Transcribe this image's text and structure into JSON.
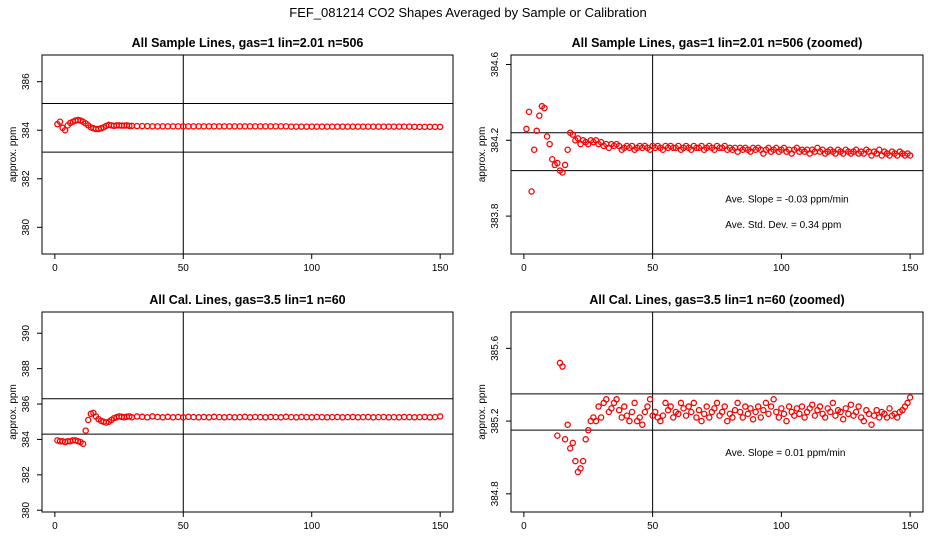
{
  "page": {
    "title": "FEF_081214  CO2 Shapes Averaged by Sample or Calibration"
  },
  "chart_data": [
    {
      "type": "scatter",
      "title": "All Sample Lines, gas=1 lin=2.01 n=506",
      "xlabel": "",
      "ylabel": "approx. ppm",
      "xlim": [
        -5,
        155
      ],
      "ylim": [
        378.9,
        387.1
      ],
      "xticks": [
        0,
        50,
        100,
        150
      ],
      "yticks": [
        380,
        382,
        384,
        386
      ],
      "hlines": [
        385.1,
        383.1
      ],
      "vlines": [
        50
      ],
      "annotations": [],
      "series": [
        {
          "color": "#ff0000",
          "x": [
            1,
            2,
            3,
            4,
            5,
            6,
            7,
            8,
            9,
            10,
            11,
            12,
            13,
            14,
            15,
            16,
            17,
            18,
            19,
            20,
            21,
            22,
            23,
            24,
            25,
            26,
            27,
            28,
            29,
            30,
            32,
            34,
            36,
            38,
            40,
            42,
            44,
            46,
            48,
            50,
            52,
            54,
            56,
            58,
            60,
            62,
            64,
            66,
            68,
            70,
            72,
            74,
            76,
            78,
            80,
            82,
            84,
            86,
            88,
            90,
            92,
            94,
            96,
            98,
            100,
            102,
            104,
            106,
            108,
            110,
            112,
            114,
            116,
            118,
            120,
            122,
            124,
            126,
            128,
            130,
            132,
            134,
            136,
            138,
            140,
            142,
            144,
            146,
            148,
            150
          ],
          "y": [
            384.25,
            384.35,
            384.1,
            384.0,
            384.2,
            384.3,
            384.35,
            384.4,
            384.42,
            384.4,
            384.35,
            384.28,
            384.2,
            384.12,
            384.08,
            384.05,
            384.05,
            384.08,
            384.12,
            384.18,
            384.22,
            384.2,
            384.18,
            384.2,
            384.2,
            384.19,
            384.19,
            384.2,
            384.18,
            384.18,
            384.17,
            384.17,
            384.17,
            384.16,
            384.16,
            384.16,
            384.16,
            384.16,
            384.16,
            384.16,
            384.16,
            384.16,
            384.16,
            384.16,
            384.16,
            384.16,
            384.16,
            384.16,
            384.16,
            384.16,
            384.16,
            384.16,
            384.16,
            384.16,
            384.16,
            384.16,
            384.16,
            384.16,
            384.16,
            384.16,
            384.15,
            384.15,
            384.15,
            384.15,
            384.15,
            384.15,
            384.15,
            384.15,
            384.15,
            384.15,
            384.15,
            384.15,
            384.15,
            384.15,
            384.15,
            384.15,
            384.15,
            384.15,
            384.15,
            384.15,
            384.15,
            384.15,
            384.15,
            384.15,
            384.14,
            384.14,
            384.14,
            384.14,
            384.14,
            384.14
          ]
        }
      ]
    },
    {
      "type": "scatter",
      "title": "All Sample Lines, gas=1 lin=2.01 n=506 (zoomed)",
      "xlabel": "",
      "ylabel": "approx. ppm",
      "xlim": [
        -5,
        155
      ],
      "ylim": [
        383.6,
        384.65
      ],
      "xticks": [
        0,
        50,
        100,
        150
      ],
      "yticks": [
        383.8,
        384.2,
        384.6
      ],
      "hlines": [
        384.24,
        384.04
      ],
      "vlines": [
        50
      ],
      "annotations": [
        "Ave. Slope =  -0.03  ppm/min",
        "Ave. Std. Dev. =  0.34  ppm"
      ],
      "series": [
        {
          "color": "#ff0000",
          "x": [
            1,
            2,
            3,
            4,
            5,
            6,
            7,
            8,
            9,
            10,
            11,
            12,
            13,
            14,
            15,
            16,
            17,
            18,
            19,
            20,
            21,
            22,
            23,
            24,
            25,
            26,
            27,
            28,
            29,
            30,
            31,
            32,
            33,
            34,
            35,
            36,
            37,
            38,
            39,
            40,
            41,
            42,
            43,
            44,
            45,
            46,
            47,
            48,
            49,
            50,
            51,
            52,
            53,
            54,
            55,
            56,
            57,
            58,
            59,
            60,
            61,
            62,
            63,
            64,
            65,
            66,
            67,
            68,
            69,
            70,
            71,
            72,
            73,
            74,
            75,
            76,
            77,
            78,
            79,
            80,
            81,
            82,
            83,
            84,
            85,
            86,
            87,
            88,
            89,
            90,
            91,
            92,
            93,
            94,
            95,
            96,
            97,
            98,
            99,
            100,
            101,
            102,
            103,
            104,
            105,
            106,
            107,
            108,
            109,
            110,
            111,
            112,
            113,
            114,
            115,
            116,
            117,
            118,
            119,
            120,
            121,
            122,
            123,
            124,
            125,
            126,
            127,
            128,
            129,
            130,
            131,
            132,
            133,
            134,
            135,
            136,
            137,
            138,
            139,
            140,
            141,
            142,
            143,
            144,
            145,
            146,
            147,
            148,
            149,
            150
          ],
          "y": [
            384.26,
            384.35,
            383.93,
            384.15,
            384.25,
            384.33,
            384.38,
            384.37,
            384.22,
            384.18,
            384.1,
            384.07,
            384.08,
            384.04,
            384.03,
            384.07,
            384.15,
            384.24,
            384.23,
            384.2,
            384.21,
            384.18,
            384.2,
            384.19,
            384.18,
            384.2,
            384.19,
            384.2,
            384.18,
            384.19,
            384.17,
            384.18,
            384.16,
            384.18,
            384.17,
            384.18,
            384.17,
            384.15,
            384.16,
            384.17,
            384.16,
            384.17,
            384.15,
            384.16,
            384.17,
            384.16,
            384.17,
            384.16,
            384.15,
            384.17,
            384.16,
            384.17,
            384.16,
            384.15,
            384.17,
            384.16,
            384.17,
            384.16,
            384.16,
            384.17,
            384.15,
            384.16,
            384.17,
            384.16,
            384.15,
            384.17,
            384.16,
            384.16,
            384.17,
            384.15,
            384.16,
            384.17,
            384.16,
            384.15,
            384.17,
            384.16,
            384.16,
            384.17,
            384.15,
            384.16,
            384.15,
            384.16,
            384.14,
            384.16,
            384.15,
            384.16,
            384.15,
            384.14,
            384.16,
            384.15,
            384.16,
            384.15,
            384.13,
            384.15,
            384.16,
            384.14,
            384.15,
            384.16,
            384.14,
            384.15,
            384.16,
            384.14,
            384.15,
            384.13,
            384.15,
            384.16,
            384.14,
            384.15,
            384.14,
            384.15,
            384.13,
            384.15,
            384.14,
            384.16,
            384.14,
            384.15,
            384.13,
            384.14,
            384.15,
            384.14,
            384.13,
            384.15,
            384.14,
            384.13,
            384.15,
            384.14,
            384.13,
            384.14,
            384.15,
            384.13,
            384.14,
            384.13,
            384.15,
            384.14,
            384.12,
            384.14,
            384.13,
            384.15,
            384.12,
            384.14,
            384.13,
            384.12,
            384.14,
            384.13,
            384.12,
            384.14,
            384.13,
            384.12,
            384.13,
            384.12
          ]
        }
      ]
    },
    {
      "type": "scatter",
      "title": "All Cal. Lines, gas=3.5 lin=1 n=60",
      "xlabel": "",
      "ylabel": "approx. ppm",
      "xlim": [
        -5,
        155
      ],
      "ylim": [
        379.9,
        391.2
      ],
      "xticks": [
        0,
        50,
        100,
        150
      ],
      "yticks": [
        380,
        382,
        384,
        386,
        388,
        390
      ],
      "hlines": [
        386.3,
        384.3
      ],
      "vlines": [
        50
      ],
      "annotations": [],
      "series": [
        {
          "color": "#ff0000",
          "x": [
            1,
            2,
            3,
            4,
            5,
            6,
            7,
            8,
            9,
            10,
            11,
            12,
            13,
            14,
            15,
            16,
            17,
            18,
            19,
            20,
            21,
            22,
            23,
            24,
            25,
            26,
            27,
            28,
            29,
            30,
            32,
            34,
            36,
            38,
            40,
            42,
            44,
            46,
            48,
            50,
            52,
            54,
            56,
            58,
            60,
            62,
            64,
            66,
            68,
            70,
            72,
            74,
            76,
            78,
            80,
            82,
            84,
            86,
            88,
            90,
            92,
            94,
            96,
            98,
            100,
            102,
            104,
            106,
            108,
            110,
            112,
            114,
            116,
            118,
            120,
            122,
            124,
            126,
            128,
            130,
            132,
            134,
            136,
            138,
            140,
            142,
            144,
            146,
            148,
            150
          ],
          "y": [
            383.95,
            383.9,
            383.9,
            383.85,
            383.9,
            383.9,
            383.95,
            383.95,
            383.9,
            383.85,
            383.75,
            384.5,
            385.1,
            385.45,
            385.5,
            385.3,
            385.15,
            385.05,
            385.0,
            384.95,
            385.0,
            385.1,
            385.2,
            385.25,
            385.3,
            385.28,
            385.25,
            385.28,
            385.3,
            385.25,
            385.3,
            385.28,
            385.25,
            385.3,
            385.27,
            385.25,
            385.28,
            385.25,
            385.27,
            385.25,
            385.28,
            385.26,
            385.25,
            385.27,
            385.25,
            385.28,
            385.26,
            385.25,
            385.27,
            385.25,
            385.26,
            385.28,
            385.25,
            385.27,
            385.26,
            385.25,
            385.27,
            385.26,
            385.25,
            385.28,
            385.26,
            385.25,
            385.27,
            385.26,
            385.25,
            385.27,
            385.26,
            385.25,
            385.26,
            385.27,
            385.25,
            385.26,
            385.27,
            385.25,
            385.26,
            385.27,
            385.25,
            385.26,
            385.27,
            385.25,
            385.26,
            385.25,
            385.27,
            385.26,
            385.25,
            385.26,
            385.27,
            385.25,
            385.26,
            385.3
          ]
        }
      ]
    },
    {
      "type": "scatter",
      "title": "All Cal. Lines, gas=3.5 lin=1 n=60 (zoomed)",
      "xlabel": "",
      "ylabel": "approx. ppm",
      "xlim": [
        -5,
        155
      ],
      "ylim": [
        384.7,
        385.8
      ],
      "xticks": [
        0,
        50,
        100,
        150
      ],
      "yticks": [
        384.8,
        385.2,
        385.6
      ],
      "hlines": [
        385.35,
        385.15
      ],
      "vlines": [
        50
      ],
      "annotations": [
        "Ave. Slope =  0.01  ppm/min"
      ],
      "series": [
        {
          "color": "#ff0000",
          "x": [
            13,
            14,
            15,
            16,
            17,
            18,
            19,
            20,
            21,
            22,
            23,
            24,
            25,
            26,
            27,
            28,
            29,
            30,
            31,
            32,
            33,
            34,
            35,
            36,
            37,
            38,
            39,
            40,
            41,
            42,
            43,
            44,
            45,
            46,
            47,
            48,
            49,
            50,
            51,
            52,
            53,
            54,
            55,
            56,
            57,
            58,
            59,
            60,
            61,
            62,
            63,
            64,
            65,
            66,
            67,
            68,
            69,
            70,
            71,
            72,
            73,
            74,
            75,
            76,
            77,
            78,
            79,
            80,
            81,
            82,
            83,
            84,
            85,
            86,
            87,
            88,
            89,
            90,
            91,
            92,
            93,
            94,
            95,
            96,
            97,
            98,
            99,
            100,
            101,
            102,
            103,
            104,
            105,
            106,
            107,
            108,
            109,
            110,
            111,
            112,
            113,
            114,
            115,
            116,
            117,
            118,
            119,
            120,
            121,
            122,
            123,
            124,
            125,
            126,
            127,
            128,
            129,
            130,
            131,
            132,
            133,
            134,
            135,
            136,
            137,
            138,
            139,
            140,
            141,
            142,
            143,
            144,
            145,
            146,
            147,
            148,
            149,
            150
          ],
          "y": [
            385.12,
            385.52,
            385.5,
            385.1,
            385.18,
            385.05,
            385.08,
            384.98,
            384.92,
            384.94,
            384.98,
            385.1,
            385.15,
            385.2,
            385.22,
            385.2,
            385.28,
            385.22,
            385.3,
            385.32,
            385.25,
            385.27,
            385.3,
            385.32,
            385.26,
            385.22,
            385.28,
            385.23,
            385.2,
            385.25,
            385.3,
            385.2,
            385.22,
            385.18,
            385.25,
            385.28,
            385.32,
            385.23,
            385.25,
            385.22,
            385.2,
            385.23,
            385.3,
            385.26,
            385.28,
            385.22,
            385.25,
            385.24,
            385.3,
            385.27,
            385.23,
            385.28,
            385.25,
            385.3,
            385.22,
            385.26,
            385.2,
            385.24,
            385.28,
            385.22,
            385.25,
            385.27,
            385.3,
            385.23,
            385.25,
            385.28,
            385.2,
            385.24,
            385.22,
            385.26,
            385.3,
            385.25,
            385.22,
            385.28,
            385.24,
            385.27,
            385.21,
            385.25,
            385.28,
            385.22,
            385.26,
            385.3,
            385.24,
            385.28,
            385.32,
            385.25,
            385.22,
            385.27,
            385.24,
            385.2,
            385.28,
            385.25,
            385.23,
            385.27,
            385.24,
            385.28,
            385.22,
            385.25,
            385.27,
            385.29,
            385.23,
            385.26,
            385.28,
            385.24,
            385.22,
            385.27,
            385.25,
            385.3,
            385.23,
            385.26,
            385.25,
            385.21,
            385.27,
            385.24,
            385.29,
            385.23,
            385.25,
            385.28,
            385.22,
            385.2,
            385.26,
            385.24,
            385.18,
            385.23,
            385.26,
            385.22,
            385.25,
            385.24,
            385.22,
            385.27,
            385.23,
            385.24,
            385.22,
            385.25,
            385.26,
            385.28,
            385.3,
            385.33
          ]
        }
      ]
    }
  ]
}
